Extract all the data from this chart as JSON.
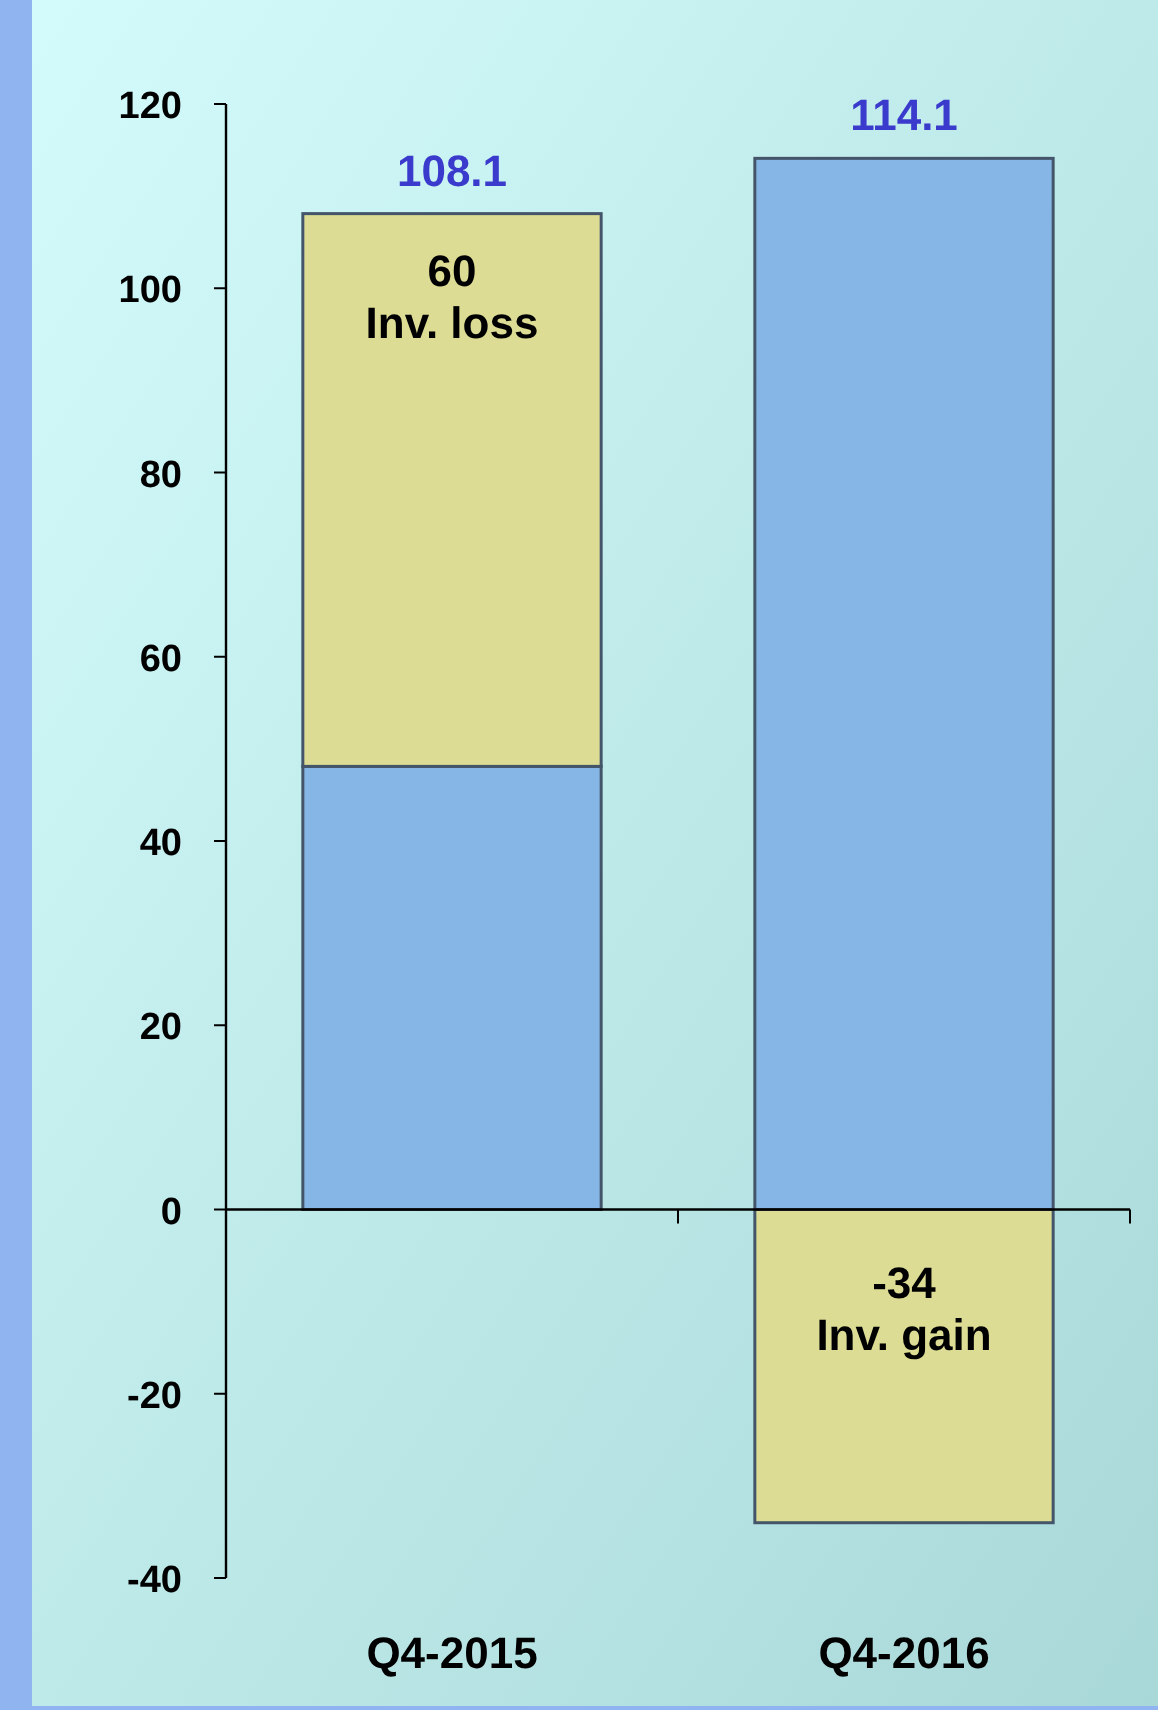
{
  "chart_data": {
    "type": "bar",
    "stacked": true,
    "categories": [
      "Q4-2015",
      "Q4-2016"
    ],
    "series": [
      {
        "color": "#86b6e6",
        "values": [
          48.1,
          114.1
        ]
      },
      {
        "color": "#dcdc94",
        "values": [
          60,
          -34
        ],
        "value_labels": [
          "60\nInv. loss",
          "-34\nInv. gain"
        ]
      }
    ],
    "annotations": [
      {
        "text": "108.1",
        "x": "Q4-2015",
        "y": 108.1
      },
      {
        "text": "114.1",
        "x": "Q4-2016",
        "y": 114.1
      }
    ],
    "ylim": [
      -40,
      120
    ],
    "yticks": [
      -40,
      -20,
      0,
      20,
      40,
      60,
      80,
      100,
      120
    ]
  }
}
